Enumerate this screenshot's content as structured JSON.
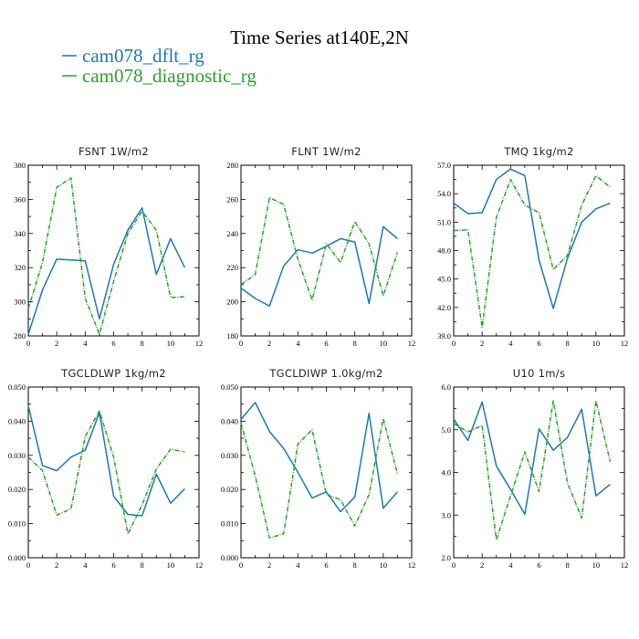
{
  "figure": {
    "title": "Time Series at140E,2N"
  },
  "legend": [
    {
      "name": "cam078_dflt_rg",
      "color": "#1f77b4"
    },
    {
      "name": "cam078_diagnostic_rg",
      "color": "#2ca02c"
    }
  ],
  "chart_data": [
    {
      "type": "line",
      "title": "FSNT   1W/m2",
      "xlim": [
        0,
        12
      ],
      "ylim": [
        280,
        380
      ],
      "xticks": [
        0,
        2,
        4,
        6,
        8,
        10,
        12
      ],
      "xtick_labels": [
        "0",
        "2",
        "4",
        "6",
        "8",
        "10",
        "12"
      ],
      "yticks": [
        280,
        300,
        320,
        340,
        360,
        380
      ],
      "ytick_labels": [
        "280",
        "300",
        "320",
        "340",
        "360",
        "380"
      ],
      "x": [
        0,
        1,
        2,
        3,
        4,
        5,
        6,
        7,
        8,
        9,
        10,
        11
      ],
      "series": [
        {
          "name": "cam078_dflt_rg",
          "color": "#1f77b4",
          "style": "solid",
          "values": [
            281,
            307,
            325,
            324.5,
            324,
            290,
            322,
            342,
            355,
            316,
            337,
            320
          ]
        },
        {
          "name": "cam078_diagnostic_rg",
          "color": "#2ca02c",
          "style": "dashed",
          "values": [
            296,
            323,
            367,
            372.5,
            302,
            281,
            312,
            340,
            353,
            342,
            302.5,
            303
          ]
        }
      ]
    },
    {
      "type": "line",
      "title": "FLNT   1W/m2",
      "xlim": [
        0,
        12
      ],
      "ylim": [
        180,
        280
      ],
      "xticks": [
        0,
        2,
        4,
        6,
        8,
        10,
        12
      ],
      "xtick_labels": [
        "0",
        "2",
        "4",
        "6",
        "8",
        "10",
        "12"
      ],
      "yticks": [
        180,
        200,
        220,
        240,
        260,
        280
      ],
      "ytick_labels": [
        "180",
        "200",
        "220",
        "240",
        "260",
        "280"
      ],
      "x": [
        0,
        1,
        2,
        3,
        4,
        5,
        6,
        7,
        8,
        9,
        10,
        11
      ],
      "series": [
        {
          "name": "cam078_dflt_rg",
          "color": "#1f77b4",
          "style": "solid",
          "values": [
            208,
            202,
            197.5,
            221,
            230.5,
            228.5,
            232.5,
            237,
            235,
            199,
            244,
            237
          ]
        },
        {
          "name": "cam078_diagnostic_rg",
          "color": "#2ca02c",
          "style": "dashed",
          "values": [
            210,
            216,
            261,
            257,
            225,
            201,
            234,
            223,
            247,
            234,
            203.5,
            229
          ]
        }
      ]
    },
    {
      "type": "line",
      "title": "TMQ   1kg/m2",
      "xlim": [
        0,
        12
      ],
      "ylim": [
        39,
        57
      ],
      "xticks": [
        0,
        2,
        4,
        6,
        8,
        10,
        12
      ],
      "xtick_labels": [
        "0",
        "2",
        "4",
        "6",
        "8",
        "10",
        "12"
      ],
      "yticks": [
        39,
        42,
        45,
        48,
        51,
        54,
        57
      ],
      "ytick_labels": [
        "39.0",
        "42.0",
        "45.0",
        "48.0",
        "51.0",
        "54.0",
        "57.0"
      ],
      "x": [
        0,
        1,
        2,
        3,
        4,
        5,
        6,
        7,
        8,
        9,
        10,
        11
      ],
      "series": [
        {
          "name": "cam078_dflt_rg",
          "color": "#1f77b4",
          "style": "solid",
          "values": [
            53,
            51.9,
            52,
            55.5,
            56.6,
            55.9,
            47,
            41.9,
            47.2,
            51,
            52.4,
            53
          ]
        },
        {
          "name": "cam078_diagnostic_rg",
          "color": "#2ca02c",
          "style": "dashed",
          "values": [
            50.1,
            50.2,
            39.9,
            51.5,
            55.5,
            52.8,
            52,
            46,
            47.5,
            52.8,
            55.9,
            54.7
          ]
        }
      ]
    },
    {
      "type": "line",
      "title": "TGCLDLWP   1kg/m2",
      "xlim": [
        0,
        12
      ],
      "ylim": [
        0,
        0.05
      ],
      "xticks": [
        0,
        2,
        4,
        6,
        8,
        10,
        12
      ],
      "xtick_labels": [
        "0",
        "2",
        "4",
        "6",
        "8",
        "10",
        "12"
      ],
      "yticks": [
        0,
        0.01,
        0.02,
        0.03,
        0.04,
        0.05
      ],
      "ytick_labels": [
        "0.000",
        "0.010",
        "0.020",
        "0.030",
        "0.040",
        "0.050"
      ],
      "x": [
        0,
        1,
        2,
        3,
        4,
        5,
        6,
        7,
        8,
        9,
        10,
        11
      ],
      "series": [
        {
          "name": "cam078_dflt_rg",
          "color": "#1f77b4",
          "style": "solid",
          "values": [
            0.0445,
            0.027,
            0.0255,
            0.0295,
            0.0315,
            0.0425,
            0.018,
            0.0127,
            0.0123,
            0.0245,
            0.016,
            0.0202
          ]
        },
        {
          "name": "cam078_diagnostic_rg",
          "color": "#2ca02c",
          "style": "dashed",
          "values": [
            0.0295,
            0.0255,
            0.0125,
            0.0143,
            0.0355,
            0.043,
            0.0295,
            0.007,
            0.0155,
            0.026,
            0.0318,
            0.031
          ]
        }
      ]
    },
    {
      "type": "line",
      "title": "TGCLDIWP   1.0kg/m2",
      "xlim": [
        0,
        12
      ],
      "ylim": [
        0,
        0.05
      ],
      "xticks": [
        0,
        2,
        4,
        6,
        8,
        10,
        12
      ],
      "xtick_labels": [
        "0",
        "2",
        "4",
        "6",
        "8",
        "10",
        "12"
      ],
      "yticks": [
        0,
        0.01,
        0.02,
        0.03,
        0.04,
        0.05
      ],
      "ytick_labels": [
        "0.000",
        "0.010",
        "0.020",
        "0.030",
        "0.040",
        "0.050"
      ],
      "x": [
        0,
        1,
        2,
        3,
        4,
        5,
        6,
        7,
        8,
        9,
        10,
        11
      ],
      "series": [
        {
          "name": "cam078_dflt_rg",
          "color": "#1f77b4",
          "style": "solid",
          "values": [
            0.0405,
            0.0455,
            0.037,
            0.032,
            0.025,
            0.0175,
            0.0193,
            0.0135,
            0.0178,
            0.0423,
            0.0145,
            0.0193
          ]
        },
        {
          "name": "cam078_diagnostic_rg",
          "color": "#2ca02c",
          "style": "dashed",
          "values": [
            0.0395,
            0.024,
            0.0058,
            0.007,
            0.0333,
            0.0375,
            0.0185,
            0.017,
            0.0093,
            0.0185,
            0.0408,
            0.0245
          ]
        }
      ]
    },
    {
      "type": "line",
      "title": "U10   1m/s",
      "xlim": [
        0,
        12
      ],
      "ylim": [
        2,
        6
      ],
      "xticks": [
        0,
        2,
        4,
        6,
        8,
        10,
        12
      ],
      "xtick_labels": [
        "0",
        "2",
        "4",
        "6",
        "8",
        "10",
        "12"
      ],
      "yticks": [
        2,
        3,
        4,
        5,
        6
      ],
      "ytick_labels": [
        "2.0",
        "3.0",
        "4.0",
        "5.0",
        "6.0"
      ],
      "x": [
        0,
        1,
        2,
        3,
        4,
        5,
        6,
        7,
        8,
        9,
        10,
        11
      ],
      "series": [
        {
          "name": "cam078_dflt_rg",
          "color": "#1f77b4",
          "style": "solid",
          "values": [
            5.25,
            4.75,
            5.65,
            4.15,
            3.6,
            3.02,
            5.02,
            4.52,
            4.82,
            5.48,
            3.45,
            3.72
          ]
        },
        {
          "name": "cam078_diagnostic_rg",
          "color": "#2ca02c",
          "style": "dashed",
          "values": [
            5.15,
            4.95,
            5.1,
            2.42,
            3.45,
            4.48,
            3.55,
            5.68,
            3.75,
            2.93,
            5.68,
            4.25
          ]
        }
      ]
    }
  ]
}
